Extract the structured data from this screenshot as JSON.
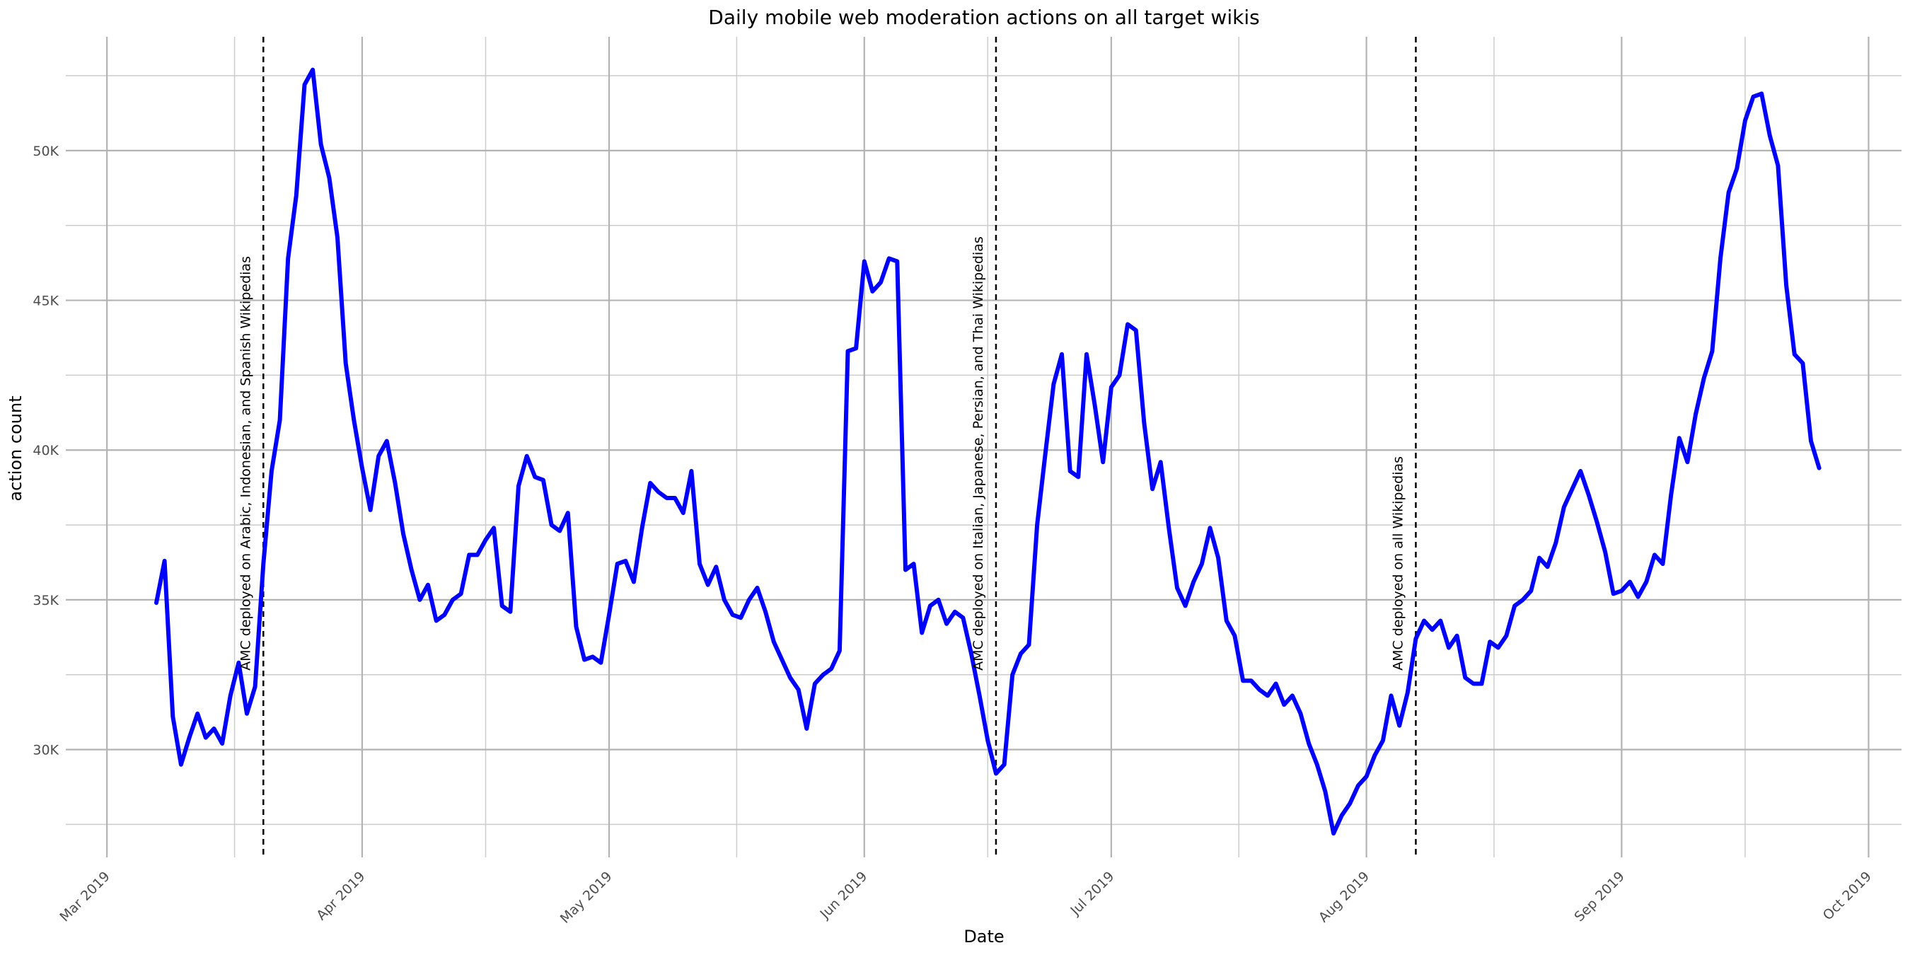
{
  "chart_data": {
    "type": "line",
    "title": "Daily mobile web moderation actions on all target wikis",
    "xlabel": "Date",
    "ylabel": "action count",
    "x_range": [
      "2019-02-24",
      "2019-10-05"
    ],
    "ylim": [
      26400,
      53800
    ],
    "y_ticks": [
      30000,
      35000,
      40000,
      45000,
      50000
    ],
    "y_tick_labels": [
      "30K",
      "35K",
      "40K",
      "45K",
      "50K"
    ],
    "x_ticks": [
      "2019-03-01",
      "2019-04-01",
      "2019-05-01",
      "2019-06-01",
      "2019-07-01",
      "2019-08-01",
      "2019-09-01",
      "2019-10-01"
    ],
    "x_tick_labels": [
      "Mar 2019",
      "Apr 2019",
      "May 2019",
      "Jun 2019",
      "Jul 2019",
      "Aug 2019",
      "Sep 2019",
      "Oct 2019"
    ],
    "grid": true,
    "line_color": "#0000ff",
    "series": [
      {
        "start_date": "2019-03-07",
        "values": [
          34900,
          36300,
          31100,
          29500,
          30400,
          31200,
          30400,
          30700,
          30200,
          31800,
          32900,
          31200,
          32100,
          36200,
          39300,
          41000,
          46400,
          48500,
          52200,
          52700,
          50200,
          49100,
          47100,
          42900,
          41000,
          39400,
          38000,
          39800,
          40300,
          38900,
          37200,
          36000,
          35000,
          35500,
          34300,
          34500,
          35000,
          35200,
          36500,
          36500,
          37000,
          37400,
          34800,
          34600,
          38800,
          39800,
          39100,
          39000,
          37500,
          37300,
          37900,
          34100,
          33000,
          33100,
          32900,
          34500,
          36200,
          36300,
          35600,
          37400,
          38900,
          38600,
          38400,
          38400,
          37900,
          39300,
          36200,
          35500,
          36100,
          35000,
          34500,
          34400,
          35000,
          35400,
          34600,
          33600,
          33000,
          32400,
          32000,
          30700,
          32200,
          32500,
          32700,
          33300,
          43300,
          43400,
          46300,
          45300,
          45600,
          46400,
          46300,
          36000,
          36200,
          33900,
          34800,
          35000,
          34200,
          34600,
          34400,
          33200,
          31800,
          30300,
          29200,
          29500,
          32500,
          33200,
          33500,
          37500,
          39900,
          42200,
          43200,
          39300,
          39100,
          43200,
          41500,
          39600,
          42100,
          42500,
          44200,
          44000,
          40900,
          38700,
          39600,
          37400,
          35400,
          34800,
          35600,
          36200,
          37400,
          36400,
          34300,
          33800,
          32300,
          32300,
          32000,
          31800,
          32200,
          31500,
          31800,
          31200,
          30200,
          29500,
          28600,
          27200,
          27800,
          28200,
          28800,
          29100,
          29800,
          30300,
          31800,
          30800,
          31900,
          33700,
          34300,
          34000,
          34300,
          33400,
          33800,
          32400,
          32200,
          32200,
          33600,
          33400,
          33800,
          34800,
          35000,
          35300,
          36400,
          36100,
          36900,
          38100,
          38700,
          39300,
          38500,
          37600,
          36600,
          35200,
          35300,
          35600,
          35100,
          35600,
          36500,
          36200,
          38500,
          40400,
          39600,
          41200,
          42400,
          43300,
          46400,
          48600,
          49400,
          51000,
          51800,
          51900,
          50500,
          49500,
          45500,
          43200,
          42900,
          40300,
          39400
        ]
      }
    ],
    "annotations": [
      {
        "date": "2019-03-20",
        "label": "AMC deployed on Arabic, Indonesian, and Spanish Wikipedias"
      },
      {
        "date": "2019-06-17",
        "label": "AMC deployed on Italian, Japanese, Persian, and Thai Wikipedias"
      },
      {
        "date": "2019-08-07",
        "label": "AMC deployed on all Wikipedias"
      }
    ]
  }
}
